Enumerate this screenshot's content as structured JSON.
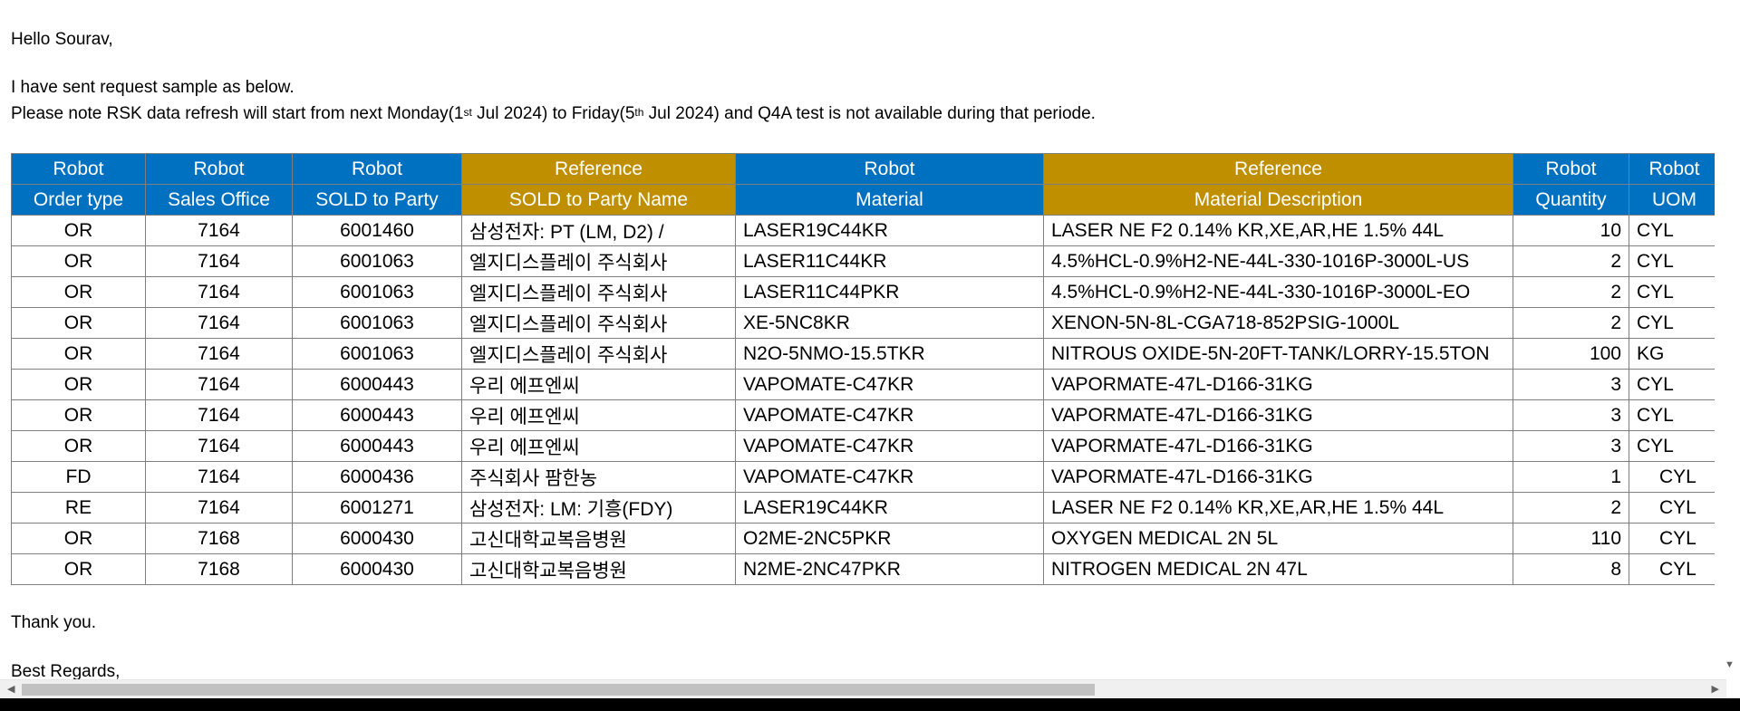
{
  "email": {
    "greeting": "Hello Sourav,",
    "intro": "I have sent request sample as below.",
    "notice": {
      "part1": "Please note RSK data refresh will start from next Monday(1",
      "sup1": "st",
      "part2": " Jul 2024) to Friday(5",
      "sup2": "th",
      "part3": " Jul 2024) and Q4A test is not available during that periode."
    },
    "thanks": "Thank you.",
    "regards": "Best Regards,"
  },
  "table": {
    "header_row1": [
      "Robot",
      "Robot",
      "Robot",
      "Reference",
      "Robot",
      "Reference",
      "Robot",
      "Robot"
    ],
    "header_row2": [
      "Order type",
      "Sales Office",
      "SOLD to Party",
      "SOLD to Party Name",
      "Material",
      "Material Description",
      "Quantity",
      "UOM"
    ],
    "header_colors": {
      "robot": "#0070c0",
      "reference": "#bf8f00"
    },
    "rows": [
      [
        "OR",
        "7164",
        "6001460",
        "삼성전자: PT (LM, D2) /",
        "LASER19C44KR",
        "LASER NE F2 0.14% KR,XE,AR,HE 1.5% 44L",
        "10",
        "CYL"
      ],
      [
        "OR",
        "7164",
        "6001063",
        "엘지디스플레이 주식회사",
        "LASER11C44KR",
        "4.5%HCL-0.9%H2-NE-44L-330-1016P-3000L-US",
        "2",
        "CYL"
      ],
      [
        "OR",
        "7164",
        "6001063",
        "엘지디스플레이 주식회사",
        "LASER11C44PKR",
        "4.5%HCL-0.9%H2-NE-44L-330-1016P-3000L-EO",
        "2",
        "CYL"
      ],
      [
        "OR",
        "7164",
        "6001063",
        "엘지디스플레이 주식회사",
        "XE-5NC8KR",
        "XENON-5N-8L-CGA718-852PSIG-1000L",
        "2",
        "CYL"
      ],
      [
        "OR",
        "7164",
        "6001063",
        "엘지디스플레이 주식회사",
        "N2O-5NMO-15.5TKR",
        "NITROUS OXIDE-5N-20FT-TANK/LORRY-15.5TON",
        "100",
        "KG"
      ],
      [
        "OR",
        "7164",
        "6000443",
        "우리 에프엔씨",
        "VAPOMATE-C47KR",
        "VAPORMATE-47L-D166-31KG",
        "3",
        "CYL"
      ],
      [
        "OR",
        "7164",
        "6000443",
        "우리 에프엔씨",
        "VAPOMATE-C47KR",
        "VAPORMATE-47L-D166-31KG",
        "3",
        "CYL"
      ],
      [
        "OR",
        "7164",
        "6000443",
        "우리 에프엔씨",
        "VAPOMATE-C47KR",
        "VAPORMATE-47L-D166-31KG",
        "3",
        "CYL"
      ],
      [
        "FD",
        "7164",
        "6000436",
        "주식회사 팜한농",
        "VAPOMATE-C47KR",
        "VAPORMATE-47L-D166-31KG",
        "1",
        "CYL"
      ],
      [
        "RE",
        "7164",
        "6001271",
        "삼성전자: LM: 기흥(FDY)",
        "LASER19C44KR",
        "LASER NE F2 0.14% KR,XE,AR,HE 1.5% 44L",
        "2",
        "CYL"
      ],
      [
        "OR",
        "7168",
        "6000430",
        "고신대학교복음병원",
        "O2ME-2NC5PKR",
        "OXYGEN MEDICAL 2N 5L",
        "110",
        "CYL"
      ],
      [
        "OR",
        "7168",
        "6000430",
        "고신대학교복음병원",
        "N2ME-2NC47PKR",
        "NITROGEN MEDICAL 2N 47L",
        "8",
        "CYL"
      ]
    ]
  },
  "scrollbar": {
    "left_icon": "arrow-left-icon",
    "right_icon": "arrow-right-icon",
    "down_icon": "arrow-down-icon"
  }
}
